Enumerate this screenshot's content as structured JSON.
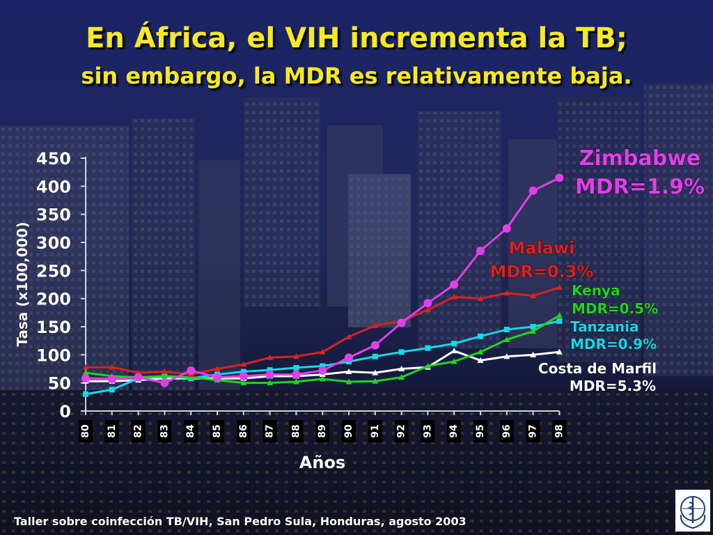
{
  "slide": {
    "title": "En África, el VIH incrementa la TB;",
    "subtitle": "sin embargo, la MDR es relativamente baja.",
    "footer": "Taller sobre coinfección TB/VIH, San Pedro Sula, Honduras, agosto 2003"
  },
  "logo": {
    "icon": "who-emblem-icon"
  },
  "chart_data": {
    "type": "line",
    "xlabel": "Años",
    "ylabel": "Tasa (x100,000)",
    "ylim": [
      0,
      450
    ],
    "yticks": [
      0,
      50,
      100,
      150,
      200,
      250,
      300,
      350,
      400,
      450
    ],
    "x": [
      "80",
      "81",
      "82",
      "83",
      "84",
      "85",
      "86",
      "87",
      "88",
      "89",
      "90",
      "91",
      "92",
      "93",
      "94",
      "95",
      "96",
      "97",
      "98"
    ],
    "grid": false,
    "legend": "direct labels at right",
    "series": [
      {
        "name": "Zimbabwe",
        "note": "MDR=1.9%",
        "color": "#e040e8",
        "marker": "circle",
        "values": [
          58,
          57,
          60,
          50,
          72,
          60,
          62,
          65,
          65,
          72,
          95,
          117,
          157,
          192,
          225,
          285,
          325,
          392,
          415
        ]
      },
      {
        "name": "Malawi",
        "note": "MDR=0.3%",
        "color": "#d42323",
        "marker": "triangle",
        "values": [
          78,
          78,
          68,
          70,
          65,
          75,
          83,
          95,
          97,
          105,
          132,
          152,
          160,
          180,
          203,
          200,
          210,
          205,
          220
        ]
      },
      {
        "name": "Kenya",
        "note": "MDR=0.5%",
        "color": "#22d422",
        "marker": "triangle",
        "values": [
          68,
          62,
          60,
          62,
          60,
          55,
          50,
          50,
          52,
          57,
          52,
          53,
          60,
          80,
          88,
          105,
          127,
          142,
          170
        ]
      },
      {
        "name": "Tanzania",
        "note": "MDR=0.9%",
        "color": "#17d8e8",
        "marker": "square",
        "values": [
          30,
          38,
          58,
          62,
          58,
          65,
          70,
          73,
          77,
          80,
          88,
          97,
          105,
          112,
          120,
          133,
          145,
          150,
          160
        ]
      },
      {
        "name": "Costa de Marfil",
        "note": "MDR=5.3%",
        "color": "#ffffff",
        "marker": "triangle",
        "values": [
          53,
          53,
          55,
          58,
          58,
          58,
          58,
          62,
          62,
          65,
          70,
          68,
          75,
          78,
          107,
          90,
          97,
          100,
          105
        ]
      }
    ]
  }
}
